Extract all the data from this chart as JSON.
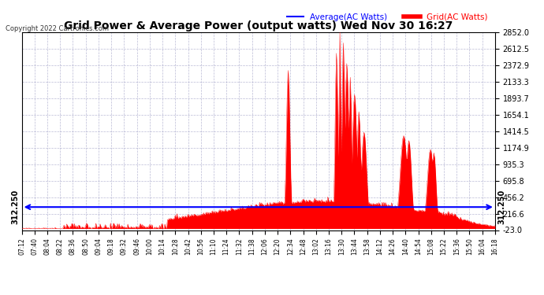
{
  "title": "Grid Power & Average Power (output watts) Wed Nov 30 16:27",
  "copyright": "Copyright 2022 Cartronics.com",
  "legend_avg": "Average(AC Watts)",
  "legend_grid": "Grid(AC Watts)",
  "avg_value": 312.25,
  "avg_label": "312.250",
  "y_min": -23.0,
  "y_max": 2852.0,
  "yticks": [
    2852.0,
    2612.5,
    2372.9,
    2133.3,
    1893.7,
    1654.1,
    1414.5,
    1174.9,
    935.3,
    695.8,
    456.2,
    216.6,
    -23.0
  ],
  "xtick_labels": [
    "07:12",
    "07:40",
    "08:04",
    "08:22",
    "08:36",
    "08:50",
    "09:04",
    "09:18",
    "09:32",
    "09:46",
    "10:00",
    "10:14",
    "10:28",
    "10:42",
    "10:56",
    "11:10",
    "11:24",
    "11:32",
    "11:38",
    "12:06",
    "12:20",
    "12:34",
    "12:48",
    "13:02",
    "13:16",
    "13:30",
    "13:44",
    "13:58",
    "14:12",
    "14:26",
    "14:40",
    "14:54",
    "15:08",
    "15:22",
    "15:36",
    "15:50",
    "16:04",
    "16:18"
  ],
  "background_color": "#ffffff",
  "grid_color": "#aaaacc",
  "fill_color": "#ff0000",
  "avg_line_color": "#0000ff",
  "title_color": "#000000",
  "copyright_color": "#333333",
  "title_fontsize": 10,
  "legend_fontsize": 7.5,
  "ytick_fontsize": 7,
  "xtick_fontsize": 5.5
}
